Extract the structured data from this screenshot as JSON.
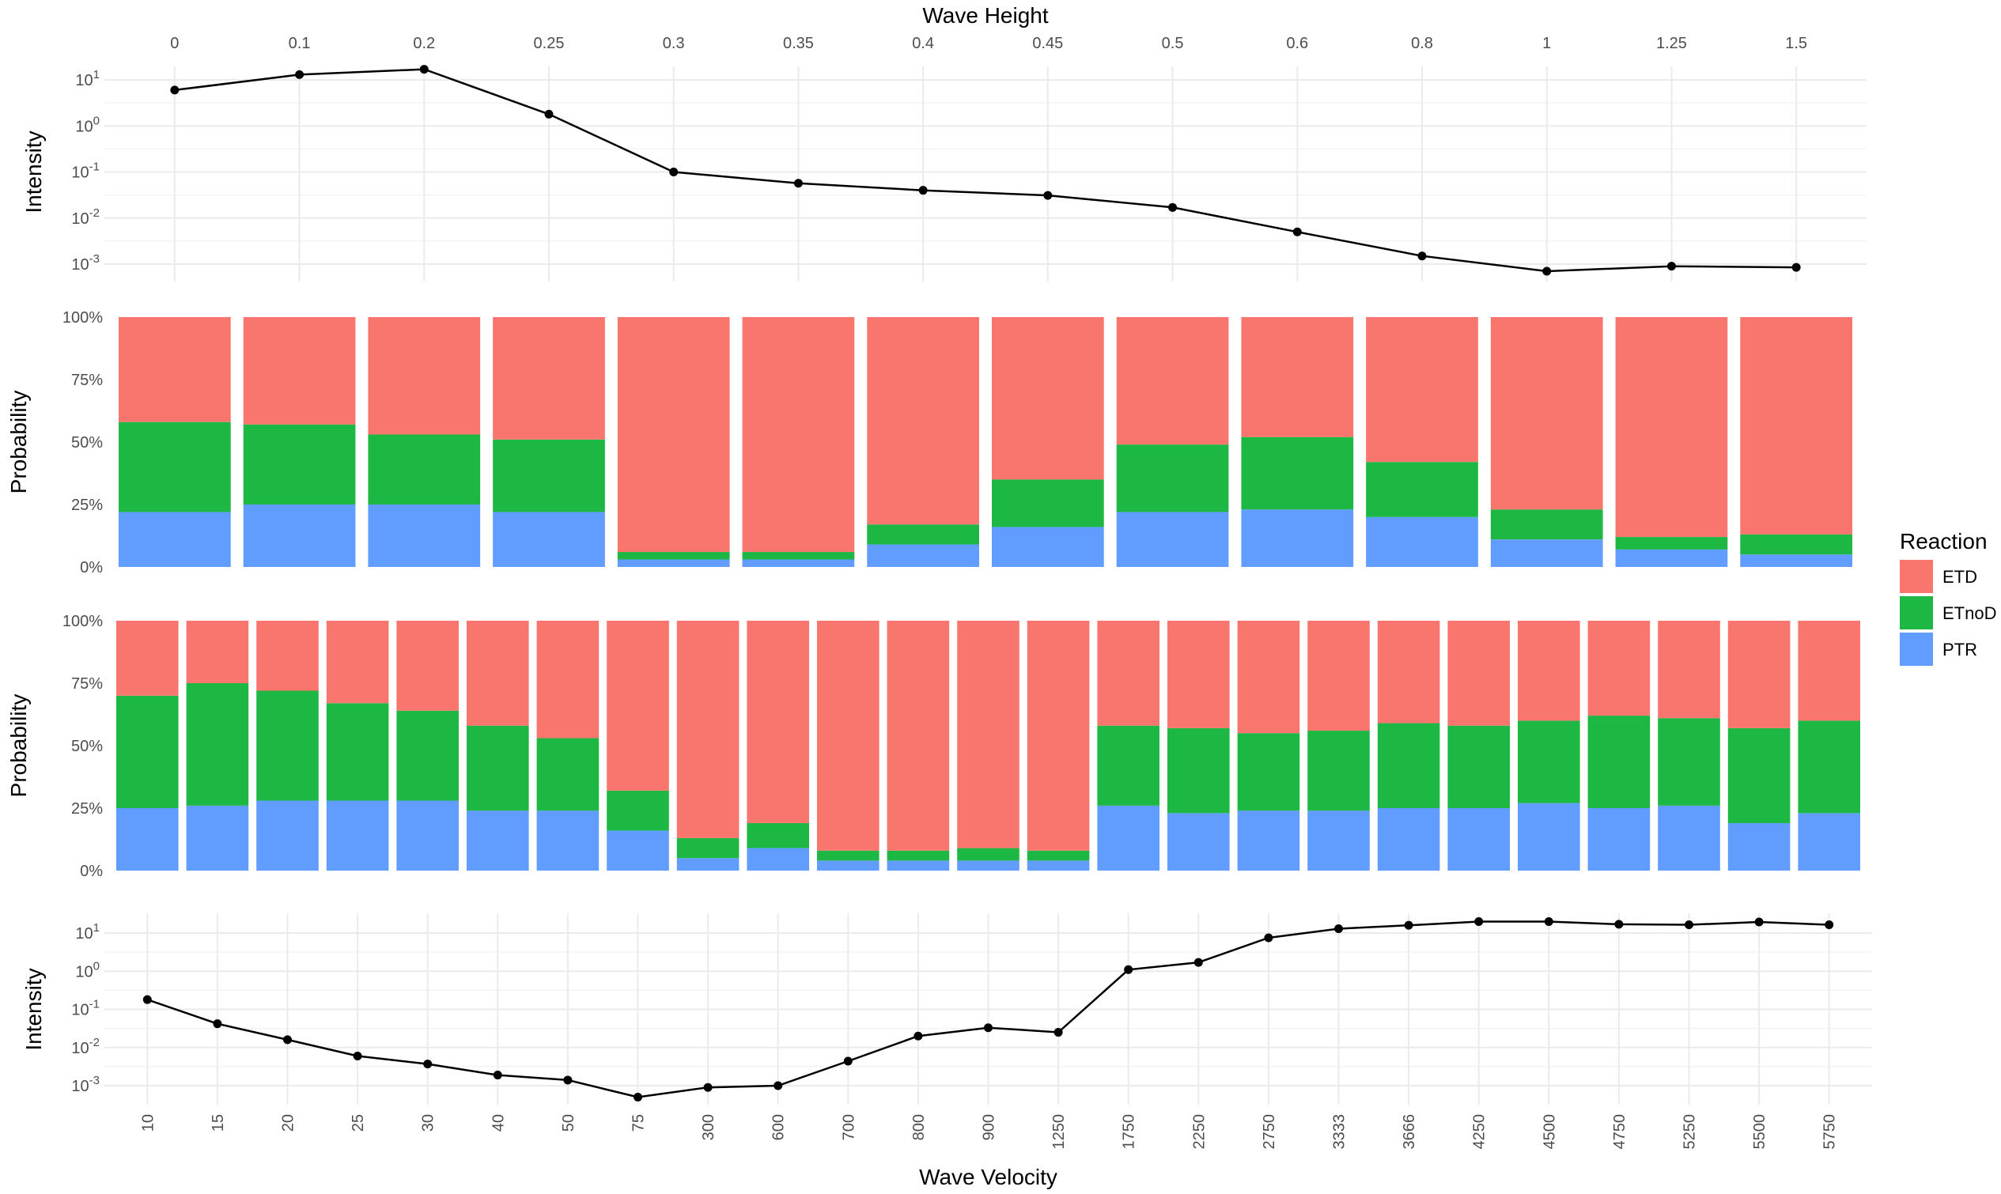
{
  "colors": {
    "ETD": "#F8766D",
    "ETnoD": "#1CB843",
    "PTR": "#619CFF",
    "line": "#000000"
  },
  "chart_data": [
    {
      "type": "line",
      "xlabel": "Wave Height",
      "ylabel": "Intensity",
      "yscale": "log10",
      "yticks": [
        "10^1",
        "10^0",
        "10^-1",
        "10^-2",
        "10^-3"
      ],
      "categories": [
        "0",
        "0.1",
        "0.2",
        "0.25",
        "0.3",
        "0.35",
        "0.4",
        "0.45",
        "0.5",
        "0.6",
        "0.8",
        "1",
        "1.25",
        "1.5"
      ],
      "values": [
        6,
        13,
        17,
        1.8,
        0.1,
        0.057,
        0.04,
        0.031,
        0.017,
        0.005,
        0.0015,
        0.0007,
        0.0009,
        0.00085
      ],
      "grid": true
    },
    {
      "type": "bar",
      "stacked": true,
      "ylabel": "Probability",
      "yticks": [
        "0%",
        "25%",
        "50%",
        "75%",
        "100%"
      ],
      "ylim": [
        0,
        1
      ],
      "categories": [
        "0",
        "0.1",
        "0.2",
        "0.25",
        "0.3",
        "0.35",
        "0.4",
        "0.45",
        "0.5",
        "0.6",
        "0.8",
        "1",
        "1.25",
        "1.5"
      ],
      "series": [
        {
          "name": "PTR",
          "values": [
            0.22,
            0.25,
            0.25,
            0.22,
            0.03,
            0.03,
            0.09,
            0.16,
            0.22,
            0.23,
            0.2,
            0.11,
            0.07,
            0.05
          ]
        },
        {
          "name": "ETnoD",
          "values": [
            0.36,
            0.32,
            0.28,
            0.29,
            0.03,
            0.03,
            0.08,
            0.19,
            0.27,
            0.29,
            0.22,
            0.12,
            0.05,
            0.08
          ]
        },
        {
          "name": "ETD",
          "values": [
            0.42,
            0.43,
            0.47,
            0.49,
            0.94,
            0.94,
            0.83,
            0.65,
            0.51,
            0.48,
            0.58,
            0.77,
            0.88,
            0.87
          ]
        }
      ]
    },
    {
      "type": "bar",
      "stacked": true,
      "ylabel": "Probability",
      "yticks": [
        "0%",
        "25%",
        "50%",
        "75%",
        "100%"
      ],
      "ylim": [
        0,
        1
      ],
      "categories": [
        "10",
        "15",
        "20",
        "25",
        "30",
        "40",
        "50",
        "75",
        "300",
        "600",
        "700",
        "800",
        "900",
        "1250",
        "1750",
        "2250",
        "2750",
        "3333",
        "3666",
        "4250",
        "4500",
        "4750",
        "5250",
        "5500",
        "5750"
      ],
      "series": [
        {
          "name": "PTR",
          "values": [
            0.25,
            0.26,
            0.28,
            0.28,
            0.28,
            0.24,
            0.24,
            0.16,
            0.05,
            0.09,
            0.04,
            0.04,
            0.04,
            0.04,
            0.26,
            0.23,
            0.24,
            0.24,
            0.25,
            0.25,
            0.27,
            0.25,
            0.26,
            0.19,
            0.23
          ]
        },
        {
          "name": "ETnoD",
          "values": [
            0.45,
            0.49,
            0.44,
            0.39,
            0.36,
            0.34,
            0.29,
            0.16,
            0.08,
            0.1,
            0.04,
            0.04,
            0.05,
            0.04,
            0.32,
            0.34,
            0.31,
            0.32,
            0.34,
            0.33,
            0.33,
            0.37,
            0.35,
            0.38,
            0.37
          ]
        },
        {
          "name": "ETD",
          "values": [
            0.3,
            0.25,
            0.28,
            0.33,
            0.36,
            0.42,
            0.47,
            0.68,
            0.87,
            0.81,
            0.92,
            0.92,
            0.91,
            0.92,
            0.42,
            0.43,
            0.45,
            0.44,
            0.41,
            0.42,
            0.4,
            0.38,
            0.39,
            0.43,
            0.4
          ]
        }
      ]
    },
    {
      "type": "line",
      "xlabel": "Wave Velocity",
      "ylabel": "Intensity",
      "yscale": "log10",
      "yticks": [
        "10^1",
        "10^0",
        "10^-1",
        "10^-2",
        "10^-3"
      ],
      "categories": [
        "10",
        "15",
        "20",
        "25",
        "30",
        "40",
        "50",
        "75",
        "300",
        "600",
        "700",
        "800",
        "900",
        "1250",
        "1750",
        "2250",
        "2750",
        "3333",
        "3666",
        "4250",
        "4500",
        "4750",
        "5250",
        "5500",
        "5750"
      ],
      "values": [
        0.18,
        0.042,
        0.016,
        0.006,
        0.0037,
        0.0019,
        0.0014,
        0.0005,
        0.0009,
        0.001,
        0.0044,
        0.02,
        0.033,
        0.025,
        1.1,
        1.7,
        7.5,
        13,
        16,
        20,
        20,
        17,
        16.5,
        19.5,
        16.5
      ],
      "grid": true
    }
  ],
  "legend": {
    "title": "Reaction",
    "position": "right",
    "entries": [
      "ETD",
      "ETnoD",
      "PTR"
    ]
  }
}
